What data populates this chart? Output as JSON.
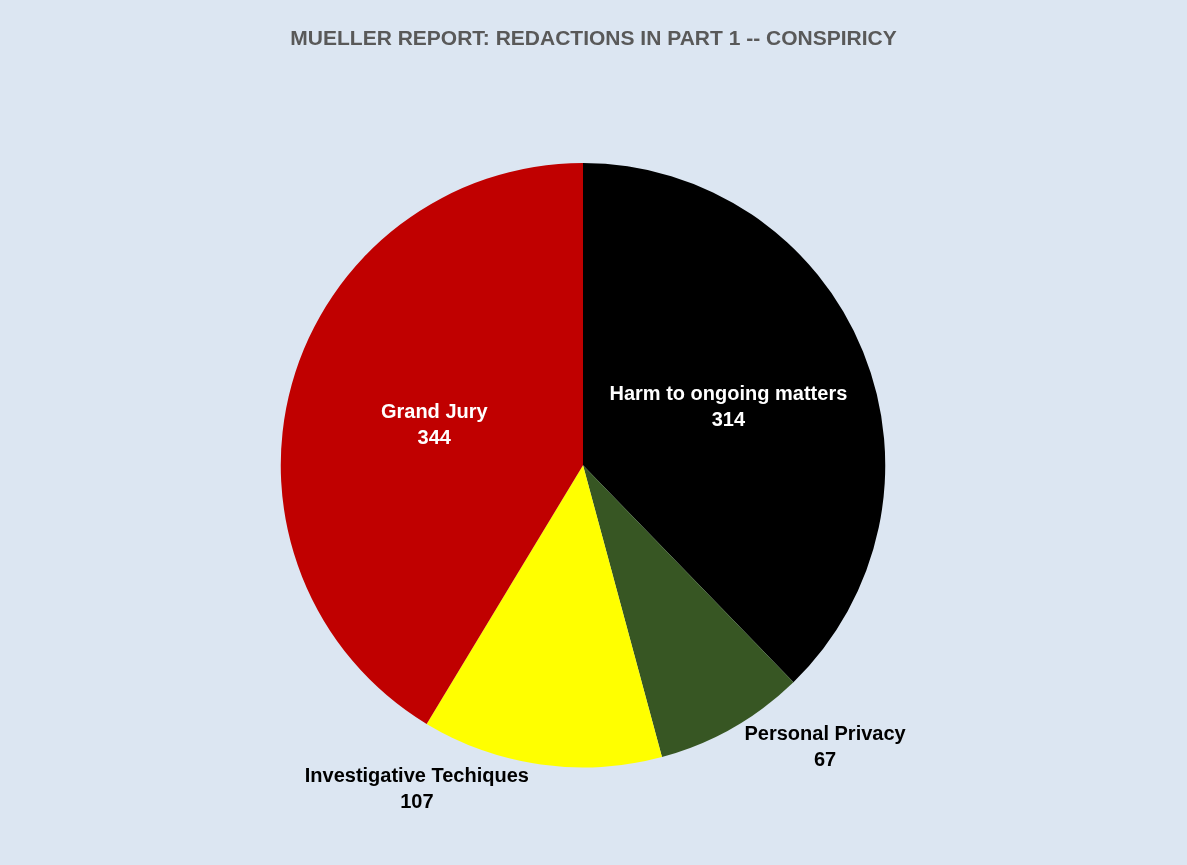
{
  "chart_data": {
    "type": "pie",
    "title": "MUELLER REPORT: REDACTIONS IN PART 1 -- CONSPIRICY",
    "categories": [
      "Harm to ongoing matters",
      "Personal Privacy",
      "Investigative Techiques",
      "Grand Jury"
    ],
    "values": [
      314,
      67,
      107,
      344
    ],
    "colors": [
      "#000000",
      "#375623",
      "#ffff00",
      "#c00000"
    ],
    "data_labels": true,
    "legend": false
  }
}
